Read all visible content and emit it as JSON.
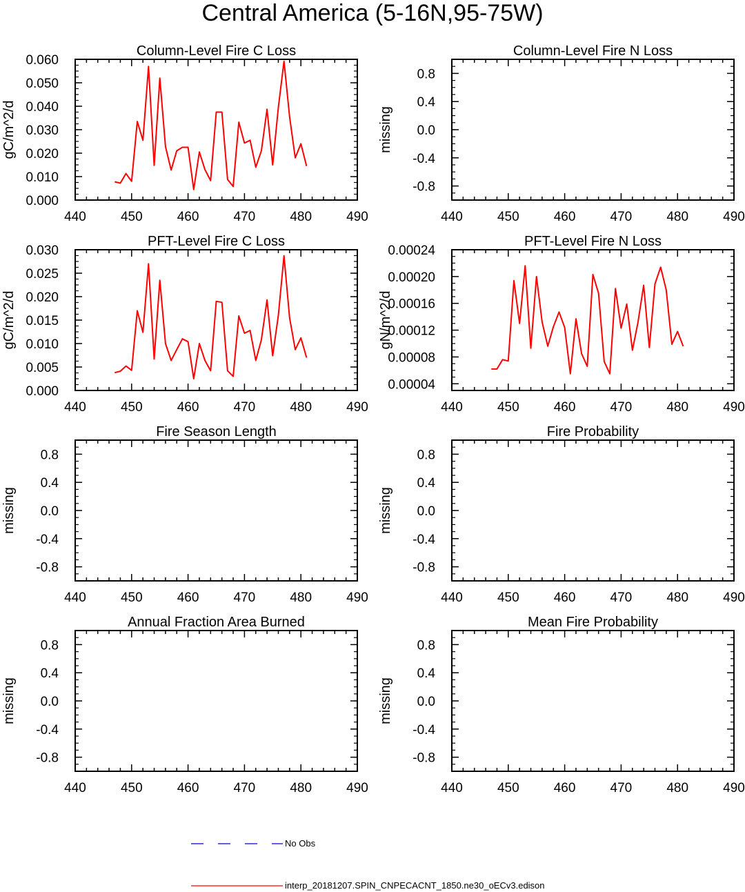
{
  "title": "Central America (5-16N,95-75W)",
  "legend": {
    "items": [
      {
        "label": "No Obs",
        "color": "#0000cc",
        "dash": true
      },
      {
        "label": "interp_20181207.SPIN_CNPECACNT_1850.ne30_oECv3.edison",
        "color": "#ff0000",
        "dash": false
      }
    ]
  },
  "chart_data": [
    {
      "type": "line",
      "title": "Column-Level Fire C Loss",
      "ylabel": "gC/m^2/d",
      "xlim": [
        440,
        490
      ],
      "ylim": [
        0,
        0.06
      ],
      "xticks": [
        "440",
        "450",
        "460",
        "470",
        "480",
        "490"
      ],
      "yticks": [
        "0.000",
        "0.010",
        "0.020",
        "0.030",
        "0.040",
        "0.050",
        "0.060"
      ],
      "yticks_at": [
        0,
        0.01,
        0.02,
        0.03,
        0.04,
        0.05,
        0.06
      ],
      "series": [
        {
          "color": "#ff0000",
          "x": [
            447,
            448,
            449,
            450,
            451,
            452,
            453,
            454,
            455,
            456,
            457,
            458,
            459,
            460,
            461,
            462,
            463,
            464,
            465,
            466,
            467,
            468,
            469,
            470,
            471,
            472,
            473,
            474,
            475,
            476,
            477,
            478,
            479,
            480,
            481
          ],
          "y": [
            0.0078,
            0.0072,
            0.0113,
            0.008,
            0.0335,
            0.0255,
            0.057,
            0.0148,
            0.052,
            0.0228,
            0.0128,
            0.021,
            0.0225,
            0.0225,
            0.0045,
            0.0205,
            0.013,
            0.0083,
            0.0375,
            0.0375,
            0.0088,
            0.0058,
            0.0332,
            0.0243,
            0.0255,
            0.014,
            0.021,
            0.0387,
            0.015,
            0.0395,
            0.0592,
            0.0355,
            0.018,
            0.024,
            0.0145
          ]
        }
      ]
    },
    {
      "type": "line",
      "title": "Column-Level Fire N Loss",
      "ylabel": "missing",
      "xlim": [
        440,
        490
      ],
      "ylim": [
        -1,
        1
      ],
      "xticks": [
        "440",
        "450",
        "460",
        "470",
        "480",
        "490"
      ],
      "yticks": [
        "-0.8",
        "-0.4",
        "0.0",
        "0.4",
        "0.8"
      ],
      "yticks_at": [
        -0.8,
        -0.4,
        0,
        0.4,
        0.8
      ],
      "series": []
    },
    {
      "type": "line",
      "title": "PFT-Level Fire C Loss",
      "ylabel": "gC/m^2/d",
      "xlim": [
        440,
        490
      ],
      "ylim": [
        0,
        0.03
      ],
      "xticks": [
        "440",
        "450",
        "460",
        "470",
        "480",
        "490"
      ],
      "yticks": [
        "0.000",
        "0.005",
        "0.010",
        "0.015",
        "0.020",
        "0.025",
        "0.030"
      ],
      "yticks_at": [
        0,
        0.005,
        0.01,
        0.015,
        0.02,
        0.025,
        0.03
      ],
      "series": [
        {
          "color": "#ff0000",
          "x": [
            447,
            448,
            449,
            450,
            451,
            452,
            453,
            454,
            455,
            456,
            457,
            458,
            459,
            460,
            461,
            462,
            463,
            464,
            465,
            466,
            467,
            468,
            469,
            470,
            471,
            472,
            473,
            474,
            475,
            476,
            477,
            478,
            479,
            480,
            481
          ],
          "y": [
            0.0038,
            0.0041,
            0.0052,
            0.0043,
            0.017,
            0.0124,
            0.027,
            0.0067,
            0.0235,
            0.01,
            0.0064,
            0.0087,
            0.011,
            0.0104,
            0.0025,
            0.01,
            0.0064,
            0.0042,
            0.019,
            0.0188,
            0.0042,
            0.003,
            0.0159,
            0.0122,
            0.0128,
            0.0064,
            0.0108,
            0.0193,
            0.0074,
            0.016,
            0.0287,
            0.0155,
            0.0087,
            0.0112,
            0.007
          ]
        }
      ]
    },
    {
      "type": "line",
      "title": "PFT-Level Fire N Loss",
      "ylabel": "gN/m^2/d",
      "xlim": [
        440,
        490
      ],
      "ylim": [
        3e-05,
        0.00024
      ],
      "xticks": [
        "440",
        "450",
        "460",
        "470",
        "480",
        "490"
      ],
      "yticks": [
        "0.00004",
        "0.00008",
        "0.00012",
        "0.00016",
        "0.00020",
        "0.00024"
      ],
      "yticks_at": [
        4e-05,
        8e-05,
        0.00012,
        0.00016,
        0.0002,
        0.00024
      ],
      "series": [
        {
          "color": "#ff0000",
          "x": [
            447,
            448,
            449,
            450,
            451,
            452,
            453,
            454,
            455,
            456,
            457,
            458,
            459,
            460,
            461,
            462,
            463,
            464,
            465,
            466,
            467,
            468,
            469,
            470,
            471,
            472,
            473,
            474,
            475,
            476,
            477,
            478,
            479,
            480,
            481
          ],
          "y": [
            6.2e-05,
            6.2e-05,
            7.6e-05,
            7.4e-05,
            0.000194,
            0.00013,
            0.000216,
            9.3e-05,
            0.0002,
            0.000132,
            9.6e-05,
            0.000125,
            0.000147,
            0.000124,
            5.5e-05,
            0.000137,
            8.5e-05,
            6.6e-05,
            0.000203,
            0.000175,
            7.3e-05,
            5.5e-05,
            0.000182,
            0.000123,
            0.000159,
            9e-05,
            0.000132,
            0.000187,
            9.4e-05,
            0.000189,
            0.000214,
            0.00018,
            9.9e-05,
            0.000118,
            9.6e-05
          ]
        }
      ]
    },
    {
      "type": "line",
      "title": "Fire Season Length",
      "ylabel": "missing",
      "xlim": [
        440,
        490
      ],
      "ylim": [
        -1,
        1
      ],
      "xticks": [
        "440",
        "450",
        "460",
        "470",
        "480",
        "490"
      ],
      "yticks": [
        "-0.8",
        "-0.4",
        "0.0",
        "0.4",
        "0.8"
      ],
      "yticks_at": [
        -0.8,
        -0.4,
        0,
        0.4,
        0.8
      ],
      "series": []
    },
    {
      "type": "line",
      "title": "Fire Probability",
      "ylabel": "missing",
      "xlim": [
        440,
        490
      ],
      "ylim": [
        -1,
        1
      ],
      "xticks": [
        "440",
        "450",
        "460",
        "470",
        "480",
        "490"
      ],
      "yticks": [
        "-0.8",
        "-0.4",
        "0.0",
        "0.4",
        "0.8"
      ],
      "yticks_at": [
        -0.8,
        -0.4,
        0,
        0.4,
        0.8
      ],
      "series": []
    },
    {
      "type": "line",
      "title": "Annual Fraction Area Burned",
      "ylabel": "missing",
      "xlim": [
        440,
        490
      ],
      "ylim": [
        -1,
        1
      ],
      "xticks": [
        "440",
        "450",
        "460",
        "470",
        "480",
        "490"
      ],
      "yticks": [
        "-0.8",
        "-0.4",
        "0.0",
        "0.4",
        "0.8"
      ],
      "yticks_at": [
        -0.8,
        -0.4,
        0,
        0.4,
        0.8
      ],
      "series": []
    },
    {
      "type": "line",
      "title": "Mean Fire Probability",
      "ylabel": "missing",
      "xlim": [
        440,
        490
      ],
      "ylim": [
        -1,
        1
      ],
      "xticks": [
        "440",
        "450",
        "460",
        "470",
        "480",
        "490"
      ],
      "yticks": [
        "-0.8",
        "-0.4",
        "0.0",
        "0.4",
        "0.8"
      ],
      "yticks_at": [
        -0.8,
        -0.4,
        0,
        0.4,
        0.8
      ],
      "series": []
    }
  ]
}
